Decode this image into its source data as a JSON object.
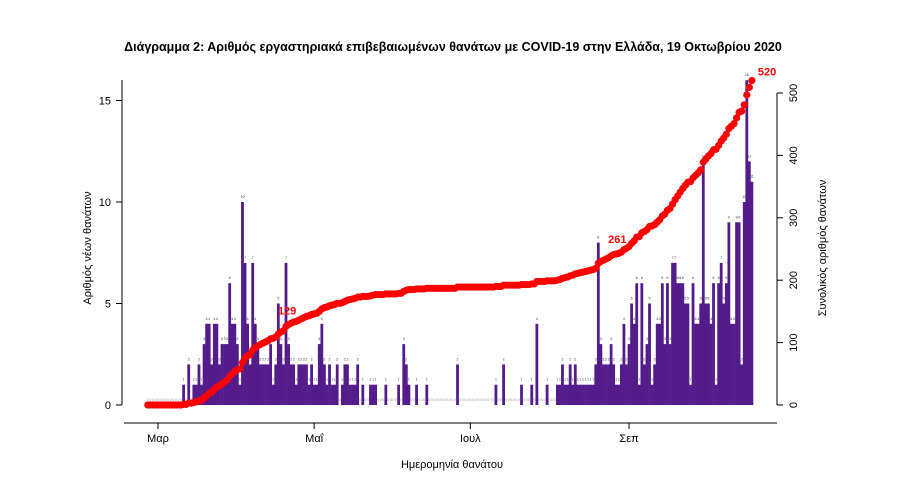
{
  "chart_data": {
    "type": "bar+line",
    "title": "Διάγραμμα 2: Αριθμός εργαστηριακά επιβεβαιωμένων θανάτων με COVID-19 στην Ελλάδα, 19 Οκτωβρίου 2020",
    "xlabel": "Ημερομηνία θανάτου",
    "ylabel_left": "Αριθμός νέων θανάτων",
    "ylabel_right": "Συνολικός αριθμός θανάτων",
    "x_range": [
      "2020-02-26",
      "2020-10-19"
    ],
    "x_ticks": [
      {
        "date": "2020-03-01",
        "label": "Μαρ"
      },
      {
        "date": "2020-05-01",
        "label": "Μαΐ"
      },
      {
        "date": "2020-07-01",
        "label": "Ιουλ"
      },
      {
        "date": "2020-09-01",
        "label": "Σεπ"
      }
    ],
    "ylim_left": [
      0,
      16
    ],
    "yticks_left": [
      0,
      5,
      10,
      15
    ],
    "ylim_right": [
      0,
      520
    ],
    "yticks_right": [
      0,
      100,
      200,
      300,
      400,
      500
    ],
    "grid": false,
    "colors": {
      "bars": "#541b8a",
      "cumulative": "#ff0000"
    },
    "series": [
      {
        "type": "bar",
        "values": [
          0,
          0,
          0,
          0,
          0,
          0,
          0,
          0,
          0,
          0,
          0,
          0,
          0,
          0,
          1,
          0,
          2,
          0,
          1,
          1,
          2,
          1,
          3,
          4,
          4,
          2,
          4,
          4,
          2,
          3,
          3,
          3,
          6,
          4,
          4,
          3,
          1,
          10,
          7,
          4,
          2,
          7,
          4,
          3,
          2,
          2,
          2,
          2,
          3,
          1,
          2,
          5,
          3,
          2,
          7,
          3,
          2,
          2,
          1,
          2,
          2,
          2,
          2,
          1,
          2,
          1,
          1,
          3,
          4,
          2,
          1,
          2,
          1,
          1,
          2,
          0,
          1,
          2,
          2,
          1,
          1,
          1,
          2,
          0,
          1,
          0,
          0,
          1,
          1,
          1,
          0,
          0,
          0,
          1,
          0,
          0,
          0,
          0,
          1,
          0,
          3,
          2,
          1,
          0,
          0,
          1,
          0,
          0,
          0,
          1,
          0,
          0,
          0,
          0,
          0,
          0,
          0,
          0,
          0,
          0,
          0,
          2,
          0,
          0,
          0,
          0,
          0,
          0,
          0,
          0,
          0,
          0,
          0,
          0,
          0,
          0,
          1,
          0,
          0,
          2,
          0,
          0,
          0,
          0,
          0,
          0,
          1,
          0,
          0,
          0,
          1,
          0,
          4,
          0,
          0,
          0,
          1,
          0,
          0,
          0,
          1,
          1,
          2,
          1,
          1,
          2,
          1,
          2,
          1,
          1,
          1,
          1,
          1,
          1,
          1,
          2,
          8,
          3,
          2,
          2,
          2,
          3,
          2,
          1,
          1,
          2,
          4,
          2,
          3,
          5,
          4,
          6,
          1,
          6,
          2,
          3,
          5,
          1,
          2,
          4,
          4,
          6,
          3,
          6,
          3,
          7,
          7,
          6,
          6,
          6,
          5,
          5,
          1,
          6,
          4,
          4,
          5,
          12,
          5,
          5,
          4,
          6,
          1,
          6,
          7,
          5,
          6,
          9,
          4,
          4,
          9,
          9,
          2,
          10,
          16,
          12,
          11
        ]
      },
      {
        "type": "cumulative-points",
        "axis": "right"
      }
    ],
    "annotations": [
      {
        "value": "129",
        "date": "2020-04-22"
      },
      {
        "value": "261",
        "date": "2020-08-29"
      },
      {
        "value": "520",
        "date": "2020-10-19"
      }
    ]
  }
}
